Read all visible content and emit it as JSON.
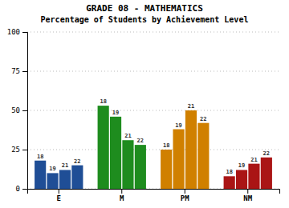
{
  "chart_data": {
    "type": "bar",
    "title": "GRADE 08 - MATHEMATICS",
    "subtitle": "Percentage of Students by Achievement Level",
    "categories": [
      "E",
      "M",
      "PM",
      "NM"
    ],
    "series": [
      {
        "name": "18",
        "values": [
          18,
          53,
          25,
          8
        ],
        "colors": [
          "#1f4e96",
          "#1e8c1e",
          "#d08000",
          "#aa1515"
        ]
      },
      {
        "name": "19",
        "values": [
          10,
          46,
          38,
          12
        ],
        "colors": [
          "#1f4e96",
          "#1e8c1e",
          "#d08000",
          "#aa1515"
        ]
      },
      {
        "name": "21",
        "values": [
          12,
          31,
          50,
          16
        ],
        "colors": [
          "#1f4e96",
          "#1e8c1e",
          "#d08000",
          "#aa1515"
        ]
      },
      {
        "name": "22",
        "values": [
          15,
          28,
          42,
          20
        ],
        "colors": [
          "#1f4e96",
          "#1e8c1e",
          "#d08000",
          "#aa1515"
        ]
      }
    ],
    "ylim": [
      0,
      100
    ],
    "yticks": [
      0,
      25,
      50,
      75,
      100
    ],
    "grid": true
  }
}
